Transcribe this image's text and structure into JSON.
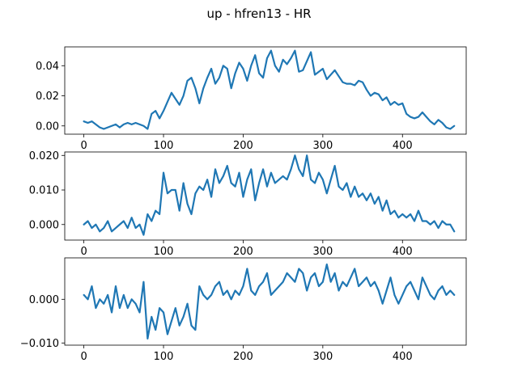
{
  "title": "up - hfren13 - HR",
  "colors": {
    "line": "#1f77b4",
    "axes": "#000000",
    "background": "#ffffff"
  },
  "chart_data": [
    {
      "type": "line",
      "xlim": [
        -24,
        480
      ],
      "ylim": [
        -0.0055,
        0.0525
      ],
      "xticks": [
        0,
        100,
        200,
        300,
        400
      ],
      "xtick_labels": [
        "0",
        "100",
        "200",
        "300",
        "400"
      ],
      "yticks": [
        0.0,
        0.02,
        0.04
      ],
      "ytick_labels": [
        "0.00",
        "0.02",
        "0.04"
      ],
      "grid": false,
      "series": [
        {
          "x": [
            0,
            5,
            10,
            15,
            20,
            25,
            30,
            35,
            40,
            45,
            50,
            55,
            60,
            65,
            70,
            75,
            80,
            85,
            90,
            95,
            100,
            105,
            110,
            115,
            120,
            125,
            130,
            135,
            140,
            145,
            150,
            155,
            160,
            165,
            170,
            175,
            180,
            185,
            190,
            195,
            200,
            205,
            210,
            215,
            220,
            225,
            230,
            235,
            240,
            245,
            250,
            255,
            260,
            265,
            270,
            275,
            280,
            285,
            290,
            295,
            300,
            305,
            310,
            315,
            320,
            325,
            330,
            335,
            340,
            345,
            350,
            355,
            360,
            365,
            370,
            375,
            380,
            385,
            390,
            395,
            400,
            405,
            410,
            415,
            420,
            425,
            430,
            435,
            440,
            445,
            450,
            455,
            460,
            465
          ],
          "y": [
            0.003,
            0.002,
            0.003,
            0.001,
            -0.001,
            -0.002,
            -0.001,
            0.0,
            0.001,
            -0.001,
            0.001,
            0.002,
            0.001,
            0.002,
            0.001,
            0.0,
            -0.002,
            0.008,
            0.01,
            0.005,
            0.01,
            0.016,
            0.022,
            0.018,
            0.014,
            0.02,
            0.03,
            0.032,
            0.025,
            0.015,
            0.025,
            0.032,
            0.038,
            0.028,
            0.032,
            0.04,
            0.038,
            0.025,
            0.035,
            0.042,
            0.038,
            0.03,
            0.04,
            0.047,
            0.035,
            0.032,
            0.045,
            0.05,
            0.04,
            0.036,
            0.044,
            0.041,
            0.045,
            0.05,
            0.036,
            0.037,
            0.043,
            0.049,
            0.034,
            0.036,
            0.038,
            0.031,
            0.034,
            0.037,
            0.033,
            0.029,
            0.028,
            0.028,
            0.027,
            0.03,
            0.029,
            0.024,
            0.02,
            0.022,
            0.021,
            0.017,
            0.019,
            0.014,
            0.016,
            0.014,
            0.015,
            0.008,
            0.006,
            0.005,
            0.006,
            0.009,
            0.006,
            0.003,
            0.001,
            0.004,
            0.002,
            -0.001,
            -0.002,
            0.0
          ]
        }
      ]
    },
    {
      "type": "line",
      "xlim": [
        -24,
        480
      ],
      "ylim": [
        -0.0045,
        0.021
      ],
      "xticks": [
        0,
        100,
        200,
        300,
        400
      ],
      "xtick_labels": [
        "0",
        "100",
        "200",
        "300",
        "400"
      ],
      "yticks": [
        0.0,
        0.01,
        0.02
      ],
      "ytick_labels": [
        "0.000",
        "0.010",
        "0.020"
      ],
      "grid": false,
      "series": [
        {
          "x": [
            0,
            5,
            10,
            15,
            20,
            25,
            30,
            35,
            40,
            45,
            50,
            55,
            60,
            65,
            70,
            75,
            80,
            85,
            90,
            95,
            100,
            105,
            110,
            115,
            120,
            125,
            130,
            135,
            140,
            145,
            150,
            155,
            160,
            165,
            170,
            175,
            180,
            185,
            190,
            195,
            200,
            205,
            210,
            215,
            220,
            225,
            230,
            235,
            240,
            245,
            250,
            255,
            260,
            265,
            270,
            275,
            280,
            285,
            290,
            295,
            300,
            305,
            310,
            315,
            320,
            325,
            330,
            335,
            340,
            345,
            350,
            355,
            360,
            365,
            370,
            375,
            380,
            385,
            390,
            395,
            400,
            405,
            410,
            415,
            420,
            425,
            430,
            435,
            440,
            445,
            450,
            455,
            460,
            465
          ],
          "y": [
            0.0,
            0.001,
            -0.001,
            0.0,
            -0.002,
            -0.001,
            0.001,
            -0.002,
            -0.001,
            0.0,
            0.001,
            -0.001,
            0.002,
            -0.001,
            0.0,
            -0.003,
            0.003,
            0.001,
            0.004,
            0.003,
            0.015,
            0.009,
            0.01,
            0.01,
            0.004,
            0.012,
            0.006,
            0.003,
            0.009,
            0.011,
            0.01,
            0.013,
            0.008,
            0.016,
            0.012,
            0.014,
            0.017,
            0.012,
            0.011,
            0.015,
            0.008,
            0.013,
            0.016,
            0.007,
            0.012,
            0.016,
            0.011,
            0.015,
            0.012,
            0.013,
            0.014,
            0.013,
            0.016,
            0.02,
            0.016,
            0.014,
            0.02,
            0.013,
            0.012,
            0.015,
            0.013,
            0.009,
            0.013,
            0.017,
            0.011,
            0.01,
            0.012,
            0.008,
            0.011,
            0.008,
            0.009,
            0.007,
            0.009,
            0.006,
            0.008,
            0.004,
            0.007,
            0.003,
            0.004,
            0.002,
            0.003,
            0.002,
            0.003,
            0.001,
            0.004,
            0.001,
            0.001,
            0.0,
            0.001,
            -0.001,
            0.001,
            0.0,
            0.0,
            -0.002
          ]
        }
      ]
    },
    {
      "type": "line",
      "xlim": [
        -24,
        480
      ],
      "ylim": [
        -0.0105,
        0.0095
      ],
      "xticks": [
        0,
        100,
        200,
        300,
        400
      ],
      "xtick_labels": [
        "0",
        "100",
        "200",
        "300",
        "400"
      ],
      "yticks": [
        0.0,
        -0.01
      ],
      "ytick_labels": [
        "0.000",
        "−0.010"
      ],
      "grid": false,
      "series": [
        {
          "x": [
            0,
            5,
            10,
            15,
            20,
            25,
            30,
            35,
            40,
            45,
            50,
            55,
            60,
            65,
            70,
            75,
            80,
            85,
            90,
            95,
            100,
            105,
            110,
            115,
            120,
            125,
            130,
            135,
            140,
            145,
            150,
            155,
            160,
            165,
            170,
            175,
            180,
            185,
            190,
            195,
            200,
            205,
            210,
            215,
            220,
            225,
            230,
            235,
            240,
            245,
            250,
            255,
            260,
            265,
            270,
            275,
            280,
            285,
            290,
            295,
            300,
            305,
            310,
            315,
            320,
            325,
            330,
            335,
            340,
            345,
            350,
            355,
            360,
            365,
            370,
            375,
            380,
            385,
            390,
            395,
            400,
            405,
            410,
            415,
            420,
            425,
            430,
            435,
            440,
            445,
            450,
            455,
            460,
            465
          ],
          "y": [
            0.001,
            0.0,
            0.003,
            -0.002,
            0.0,
            -0.001,
            0.001,
            -0.003,
            0.003,
            -0.002,
            0.001,
            -0.002,
            0.0,
            -0.001,
            -0.003,
            0.004,
            -0.009,
            -0.004,
            -0.007,
            -0.002,
            -0.003,
            -0.008,
            -0.005,
            -0.002,
            -0.006,
            -0.004,
            -0.001,
            -0.006,
            -0.007,
            0.003,
            0.001,
            0.0,
            0.001,
            0.003,
            0.004,
            0.001,
            0.002,
            0.0,
            0.002,
            0.001,
            0.003,
            0.007,
            0.002,
            0.001,
            0.003,
            0.004,
            0.006,
            0.001,
            0.002,
            0.003,
            0.004,
            0.006,
            0.005,
            0.004,
            0.007,
            0.006,
            0.002,
            0.005,
            0.006,
            0.003,
            0.004,
            0.008,
            0.004,
            0.006,
            0.002,
            0.004,
            0.003,
            0.005,
            0.007,
            0.003,
            0.004,
            0.005,
            0.003,
            0.004,
            0.002,
            -0.001,
            0.002,
            0.005,
            0.001,
            -0.001,
            0.001,
            0.003,
            0.004,
            0.002,
            0.0,
            0.005,
            0.003,
            0.001,
            0.0,
            0.002,
            0.003,
            0.001,
            0.002,
            0.001
          ]
        }
      ]
    }
  ]
}
